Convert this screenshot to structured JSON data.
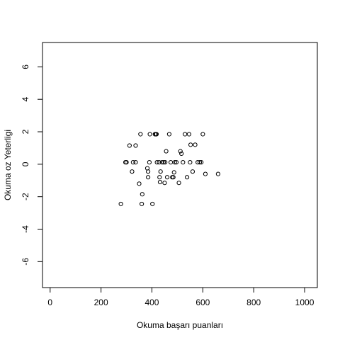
{
  "chart_data": {
    "type": "scatter",
    "title": "",
    "xlabel": "Okuma başarı puanları",
    "ylabel": "Okuma oz Yeterligi",
    "xlim": [
      -30,
      1050
    ],
    "ylim": [
      -7.6,
      7.5
    ],
    "xticks": [
      0,
      200,
      400,
      600,
      800,
      1000
    ],
    "yticks": [
      -6,
      -4,
      -2,
      0,
      2,
      4,
      6
    ],
    "grid": false,
    "legend": "none",
    "marker": "open-circle",
    "color": "#000000",
    "points": [
      {
        "x": 278,
        "y": -2.45
      },
      {
        "x": 296,
        "y": 0.12
      },
      {
        "x": 300,
        "y": 0.12
      },
      {
        "x": 312,
        "y": 1.15
      },
      {
        "x": 322,
        "y": -0.45
      },
      {
        "x": 326,
        "y": 0.12
      },
      {
        "x": 336,
        "y": 0.12
      },
      {
        "x": 336,
        "y": 1.15
      },
      {
        "x": 350,
        "y": -1.2
      },
      {
        "x": 355,
        "y": 1.85
      },
      {
        "x": 360,
        "y": -2.45
      },
      {
        "x": 362,
        "y": -1.85
      },
      {
        "x": 382,
        "y": -0.25
      },
      {
        "x": 385,
        "y": -0.45
      },
      {
        "x": 385,
        "y": -0.8
      },
      {
        "x": 390,
        "y": 0.12
      },
      {
        "x": 392,
        "y": 1.85
      },
      {
        "x": 402,
        "y": -2.45
      },
      {
        "x": 412,
        "y": 1.85
      },
      {
        "x": 415,
        "y": 1.85
      },
      {
        "x": 418,
        "y": 1.85
      },
      {
        "x": 420,
        "y": 0.12
      },
      {
        "x": 428,
        "y": 0.12
      },
      {
        "x": 430,
        "y": -0.8
      },
      {
        "x": 432,
        "y": -1.1
      },
      {
        "x": 434,
        "y": -0.45
      },
      {
        "x": 440,
        "y": 0.12
      },
      {
        "x": 446,
        "y": 0.12
      },
      {
        "x": 450,
        "y": -1.15
      },
      {
        "x": 452,
        "y": 0.12
      },
      {
        "x": 456,
        "y": 0.8
      },
      {
        "x": 460,
        "y": -0.8
      },
      {
        "x": 468,
        "y": 1.85
      },
      {
        "x": 474,
        "y": 0.12
      },
      {
        "x": 480,
        "y": -0.8
      },
      {
        "x": 484,
        "y": -0.8
      },
      {
        "x": 487,
        "y": -0.5
      },
      {
        "x": 490,
        "y": 0.12
      },
      {
        "x": 496,
        "y": 0.12
      },
      {
        "x": 506,
        "y": -1.15
      },
      {
        "x": 512,
        "y": 0.8
      },
      {
        "x": 516,
        "y": 0.65
      },
      {
        "x": 522,
        "y": 0.12
      },
      {
        "x": 530,
        "y": 1.85
      },
      {
        "x": 538,
        "y": -0.8
      },
      {
        "x": 546,
        "y": 1.85
      },
      {
        "x": 550,
        "y": 0.12
      },
      {
        "x": 552,
        "y": 1.2
      },
      {
        "x": 560,
        "y": -0.45
      },
      {
        "x": 570,
        "y": 1.2
      },
      {
        "x": 580,
        "y": 0.12
      },
      {
        "x": 588,
        "y": 0.12
      },
      {
        "x": 594,
        "y": 0.12
      },
      {
        "x": 600,
        "y": 1.85
      },
      {
        "x": 610,
        "y": -0.6
      },
      {
        "x": 660,
        "y": -0.6
      }
    ]
  }
}
